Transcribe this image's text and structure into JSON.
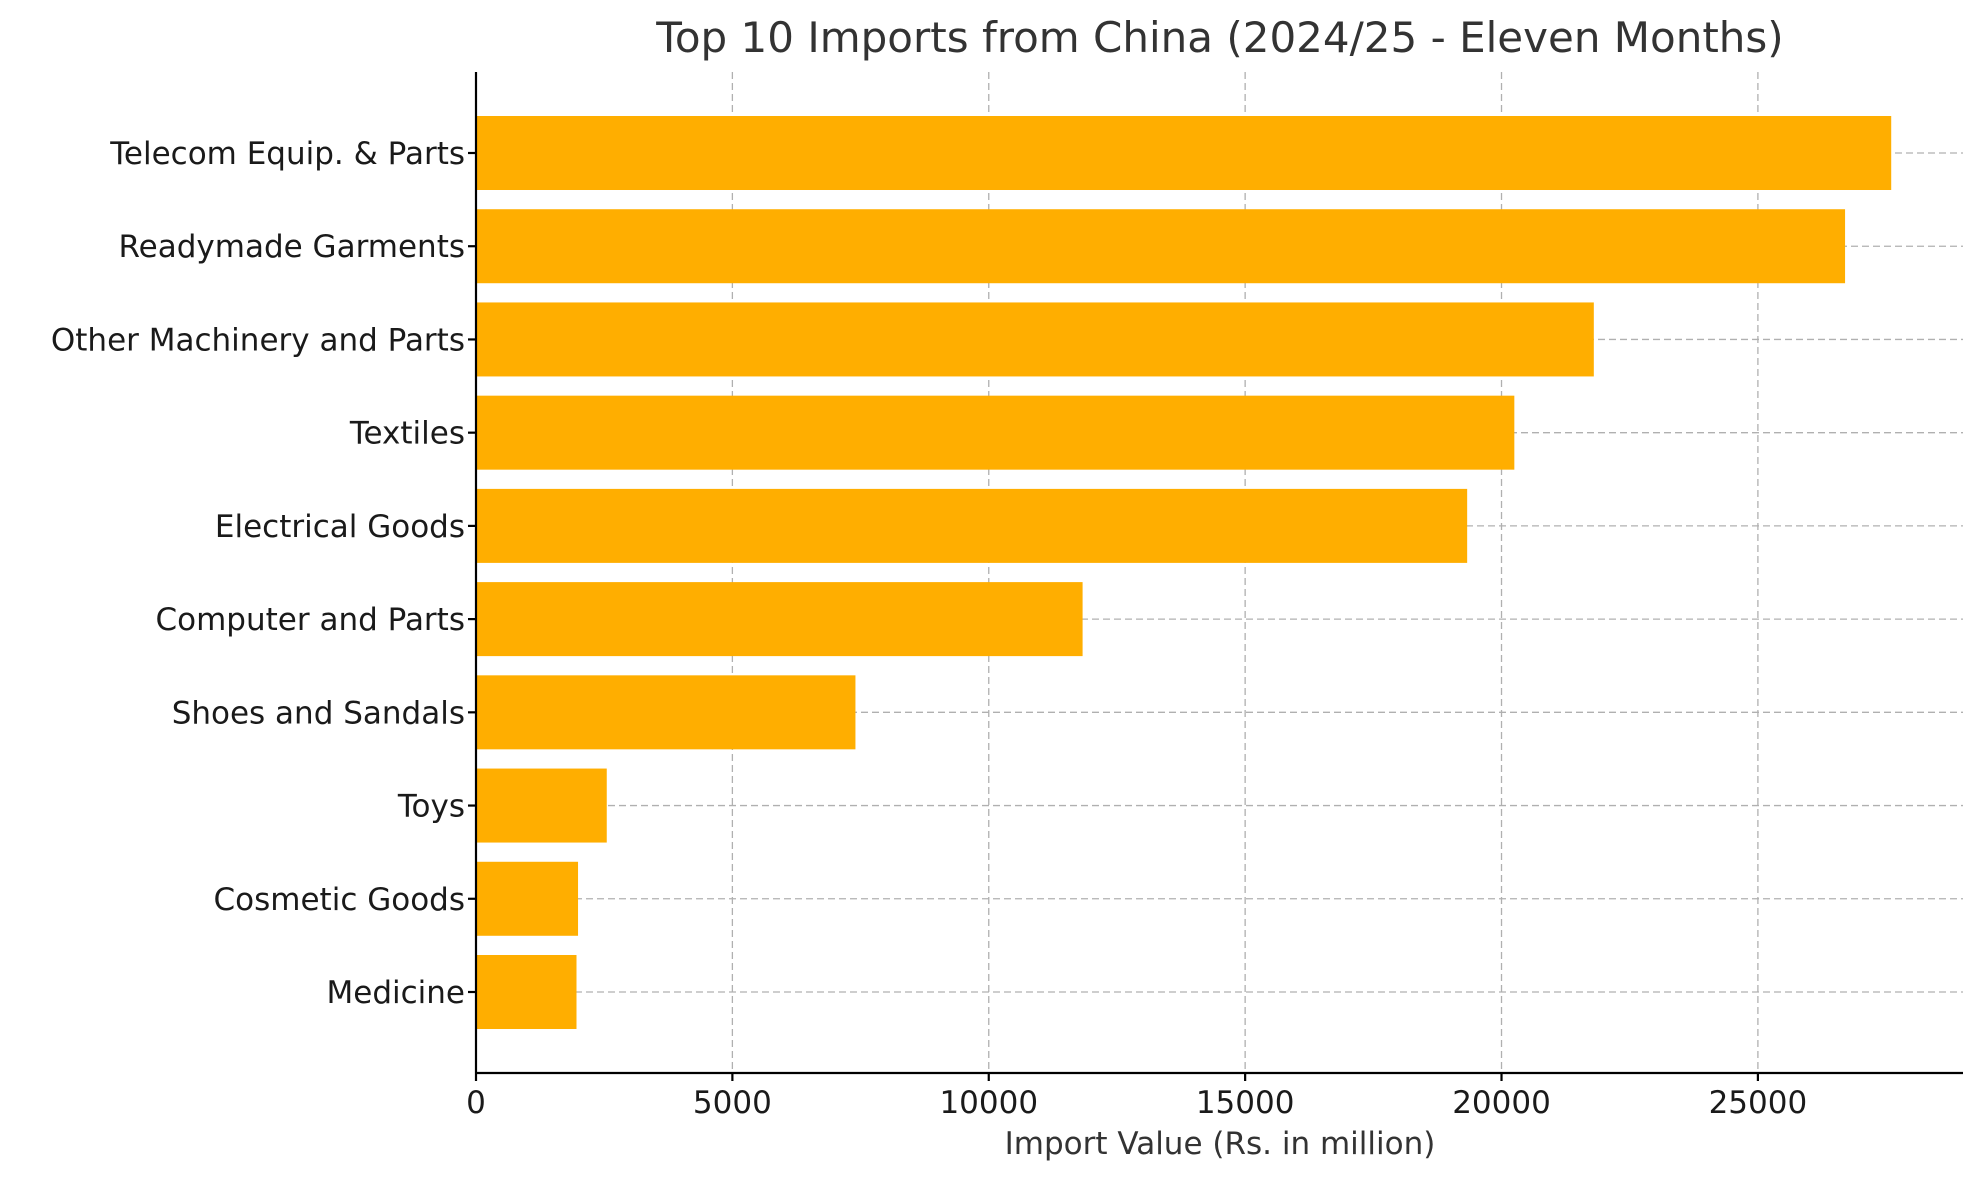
{
  "chart_data": {
    "type": "bar",
    "orientation": "horizontal",
    "title": "Top 10 Imports from China (2024/25 - Eleven Months)",
    "xlabel": "Import Value (Rs. in million)",
    "ylabel": "",
    "xlim": [
      0,
      29000
    ],
    "xticks": [
      0,
      5000,
      10000,
      15000,
      20000,
      25000
    ],
    "grid": true,
    "bar_color": "#FFAE00",
    "categories": [
      "Telecom Equip. & Parts",
      "Readymade Garments",
      "Other Machinery and Parts",
      "Textiles",
      "Electrical Goods",
      "Computer and Parts",
      "Shoes and Sandals",
      "Toys",
      "Cosmetic Goods",
      "Medicine"
    ],
    "values": [
      27600,
      26700,
      21800,
      20250,
      19330,
      11830,
      7400,
      2550,
      1990,
      1960
    ]
  }
}
